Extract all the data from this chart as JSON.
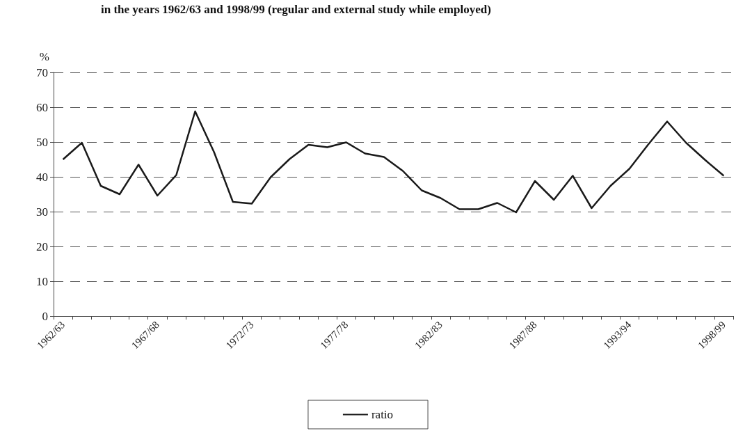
{
  "chart_data": {
    "type": "line",
    "title": "in the years 1962/63 and 1998/99 (regular and external study while employed)",
    "ylabel": "%",
    "categories": [
      "1962/63",
      null,
      null,
      null,
      null,
      "1967/68",
      null,
      null,
      null,
      null,
      "1972/73",
      null,
      null,
      null,
      null,
      "1977/78",
      null,
      null,
      null,
      null,
      "1982/83",
      null,
      null,
      null,
      null,
      "1987/88",
      null,
      null,
      null,
      null,
      "1993/94",
      null,
      null,
      null,
      null,
      "1998/99"
    ],
    "series": [
      {
        "name": "ratio",
        "color": "#1a1a1a",
        "values": [
          45.0,
          49.8,
          37.4,
          35.0,
          43.5,
          34.6,
          40.5,
          58.8,
          47.1,
          32.8,
          32.3,
          39.9,
          45.1,
          49.2,
          48.5,
          49.9,
          46.7,
          45.7,
          41.7,
          36.1,
          33.9,
          30.7,
          30.7,
          32.5,
          29.8,
          38.8,
          33.4,
          40.3,
          31.0,
          37.4,
          42.3,
          49.3,
          55.9,
          49.8,
          44.9,
          40.3
        ]
      }
    ],
    "ylim": [
      0,
      70
    ],
    "yticks": [
      0,
      10,
      20,
      30,
      40,
      50,
      60,
      70
    ],
    "grid": "y",
    "legend": "bottom",
    "marker": "none",
    "line_style": "solid"
  }
}
